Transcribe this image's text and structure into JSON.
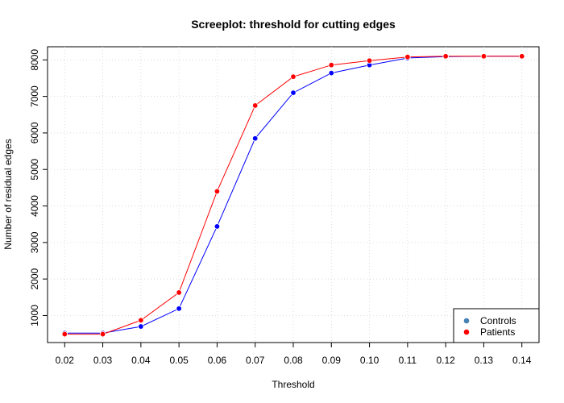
{
  "chart_data": {
    "type": "line",
    "title": "Screeplot: threshold for cutting edges",
    "xlabel": "Threshold",
    "ylabel": "Number of residual edges",
    "x": [
      0.02,
      0.03,
      0.04,
      0.05,
      0.06,
      0.07,
      0.08,
      0.09,
      0.1,
      0.11,
      0.12,
      0.13,
      0.14
    ],
    "x_tick_labels": [
      "0.02",
      "0.03",
      "0.04",
      "0.05",
      "0.06",
      "0.07",
      "0.08",
      "0.09",
      "0.10",
      "0.11",
      "0.12",
      "0.13",
      "0.14"
    ],
    "y_ticks": [
      1000,
      2000,
      3000,
      4000,
      5000,
      6000,
      7000,
      8000
    ],
    "y_tick_labels": [
      "1000",
      "2000",
      "3000",
      "4000",
      "5000",
      "6000",
      "7000",
      "8000"
    ],
    "xlim": [
      0.0155,
      0.1445
    ],
    "ylim": [
      260,
      8360
    ],
    "grid": true,
    "legend_position": "bottom-right",
    "series": [
      {
        "name": "Controls",
        "color": "#0000ff",
        "legend_color": "#4682b4",
        "values": [
          520,
          520,
          700,
          1190,
          3440,
          5850,
          7100,
          7640,
          7860,
          8050,
          8090,
          8100,
          8100
        ]
      },
      {
        "name": "Patients",
        "color": "#ff0000",
        "legend_color": "#ff0000",
        "values": [
          490,
          490,
          870,
          1630,
          4400,
          6750,
          7540,
          7860,
          7980,
          8080,
          8100,
          8100,
          8100
        ]
      }
    ]
  }
}
